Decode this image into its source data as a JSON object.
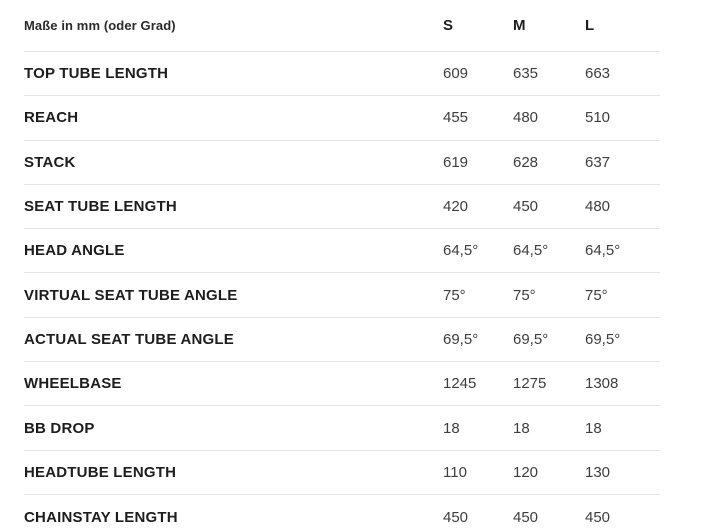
{
  "chart_data": {
    "type": "table",
    "title": "Maße in mm (oder Grad)",
    "columns": [
      "S",
      "M",
      "L"
    ],
    "rows": [
      {
        "label": "TOP TUBE LENGTH",
        "values": [
          "609",
          "635",
          "663"
        ]
      },
      {
        "label": "REACH",
        "values": [
          "455",
          "480",
          "510"
        ]
      },
      {
        "label": "STACK",
        "values": [
          "619",
          "628",
          "637"
        ]
      },
      {
        "label": "SEAT TUBE LENGTH",
        "values": [
          "420",
          "450",
          "480"
        ]
      },
      {
        "label": "HEAD ANGLE",
        "values": [
          "64,5°",
          "64,5°",
          "64,5°"
        ]
      },
      {
        "label": "VIRTUAL SEAT TUBE ANGLE",
        "values": [
          "75°",
          "75°",
          "75°"
        ]
      },
      {
        "label": "ACTUAL SEAT TUBE ANGLE",
        "values": [
          "69,5°",
          "69,5°",
          "69,5°"
        ]
      },
      {
        "label": "WHEELBASE",
        "values": [
          "1245",
          "1275",
          "1308"
        ]
      },
      {
        "label": "BB DROP",
        "values": [
          "18",
          "18",
          "18"
        ]
      },
      {
        "label": "HEADTUBE LENGTH",
        "values": [
          "110",
          "120",
          "130"
        ]
      },
      {
        "label": "CHAINSTAY LENGTH",
        "values": [
          "450",
          "450",
          "450"
        ]
      }
    ],
    "layout": {
      "grid": "horizontal-dividers-only",
      "value_alignment": "left"
    },
    "colors": {
      "background": "#ffffff",
      "label_text": "#1d1d1d",
      "value_text": "#3e3e3e",
      "divider": "#e4e4e4"
    }
  }
}
